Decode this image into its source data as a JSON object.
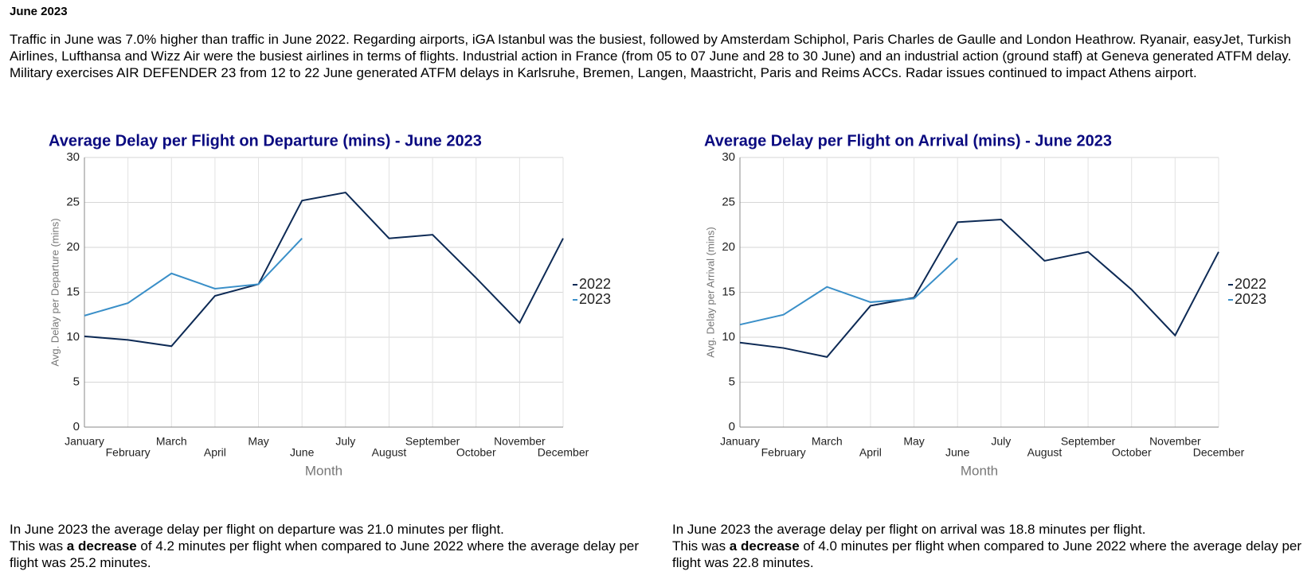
{
  "title": "June 2023",
  "intro": "Traffic in June was 7.0% higher than traffic in June 2022. Regarding airports, iGA Istanbul was the busiest, followed by Amsterdam Schiphol, Paris Charles de Gaulle and London Heathrow. Ryanair, easyJet, Turkish Airlines, Lufthansa and Wizz Air were the busiest airlines in terms of flights. Industrial action in France (from 05 to 07 June and 28 to 30 June) and an industrial action (ground staff) at Geneva generated ATFM delay. Military exercises AIR DEFENDER 23 from 12 to 22 June generated ATFM delays in Karlsruhe, Bremen, Langen, Maastricht, Paris and Reims ACCs. Radar issues continued to impact Athens airport.",
  "chart_data": [
    {
      "type": "line",
      "title": "Average Delay per Flight on Departure (mins) - June 2023",
      "x_label": "Month",
      "y_label": "Avg. Delay per Departure (mins)",
      "categories": [
        "January",
        "February",
        "March",
        "April",
        "May",
        "June",
        "July",
        "August",
        "September",
        "October",
        "November",
        "December"
      ],
      "series": [
        {
          "name": "2022",
          "color": "#0d2a55",
          "values": [
            10.1,
            9.7,
            9.0,
            14.6,
            15.9,
            25.2,
            26.1,
            21.0,
            21.4,
            16.6,
            11.6,
            21.0
          ]
        },
        {
          "name": "2023",
          "color": "#3a8fc8",
          "values": [
            12.4,
            13.8,
            17.1,
            15.4,
            15.9,
            21.0,
            null,
            null,
            null,
            null,
            null,
            null
          ]
        }
      ],
      "ylim": [
        0,
        30
      ],
      "yticks": [
        0,
        5,
        10,
        15,
        20,
        25,
        30
      ],
      "grid": true,
      "legend": "right"
    },
    {
      "type": "line",
      "title": "Average Delay per Flight on Arrival (mins) - June 2023",
      "x_label": "Month",
      "y_label": "Avg. Delay per Arrival (mins)",
      "categories": [
        "January",
        "February",
        "March",
        "April",
        "May",
        "June",
        "July",
        "August",
        "September",
        "October",
        "November",
        "December"
      ],
      "series": [
        {
          "name": "2022",
          "color": "#0d2a55",
          "values": [
            9.4,
            8.8,
            7.8,
            13.5,
            14.4,
            22.8,
            23.1,
            18.5,
            19.5,
            15.3,
            10.2,
            19.5
          ]
        },
        {
          "name": "2023",
          "color": "#3a8fc8",
          "values": [
            11.4,
            12.5,
            15.6,
            13.9,
            14.3,
            18.8,
            null,
            null,
            null,
            null,
            null,
            null
          ]
        }
      ],
      "ylim": [
        0,
        30
      ],
      "yticks": [
        0,
        5,
        10,
        15,
        20,
        25,
        30
      ],
      "grid": true,
      "legend": "right"
    }
  ],
  "summaries": [
    {
      "line1": "In June 2023 the average delay per flight on departure was 21.0 minutes per flight.",
      "pre": "This was ",
      "bold": "a decrease",
      "post": " of 4.2 minutes per flight when compared to June 2022 where the average delay per flight was 25.2 minutes."
    },
    {
      "line1": "In June 2023 the average delay per flight on arrival was 18.8 minutes per flight.",
      "pre": "This was ",
      "bold": "a decrease",
      "post": " of 4.0 minutes per flight when compared to June 2022 where the average delay per flight was 22.8 minutes."
    }
  ]
}
